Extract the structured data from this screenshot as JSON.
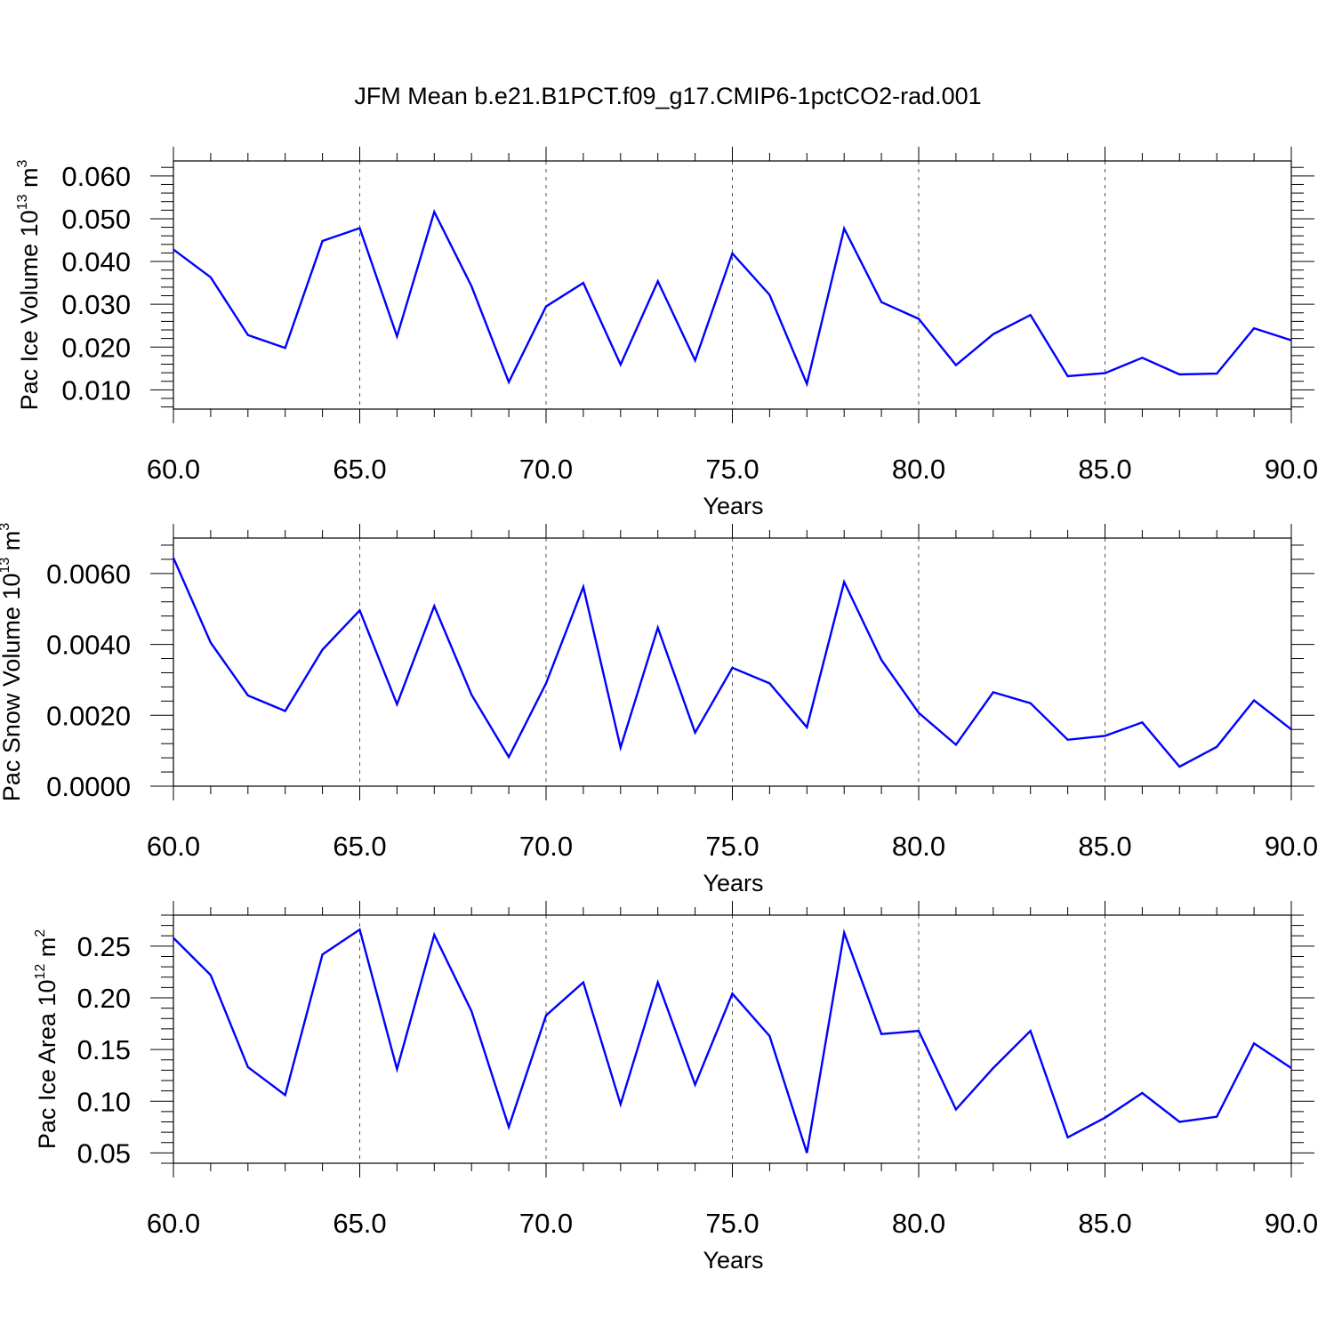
{
  "figure": {
    "title": "JFM Mean b.e21.B1PCT.f09_g17.CMIP6-1pctCO2-rad.001"
  },
  "chart_data": [
    {
      "type": "line",
      "xlabel": "Years",
      "ylabel": {
        "prefix": "Pac Ice Volume 10",
        "sup1": "13",
        "mid": " m",
        "sup2": "3"
      },
      "xlim": [
        60,
        90
      ],
      "ylim": [
        0.0055,
        0.0635
      ],
      "x_ticks": [
        60,
        65,
        70,
        75,
        80,
        85,
        90
      ],
      "x_tick_labels": [
        "60.0",
        "65.0",
        "70.0",
        "75.0",
        "80.0",
        "85.0",
        "90.0"
      ],
      "y_ticks": [
        0.01,
        0.02,
        0.03,
        0.04,
        0.05,
        0.06
      ],
      "y_tick_labels": [
        "0.010",
        "0.020",
        "0.030",
        "0.040",
        "0.050",
        "0.060"
      ],
      "grid": "dashed vertical at major x ticks",
      "series_color": "#0000ff",
      "x": [
        60,
        61,
        62,
        63,
        64,
        65,
        66,
        67,
        68,
        69,
        70,
        71,
        72,
        73,
        74,
        75,
        76,
        77,
        78,
        79,
        80,
        81,
        82,
        83,
        84,
        85,
        86,
        87,
        88,
        89,
        90
      ],
      "values": [
        0.0428,
        0.0363,
        0.0228,
        0.0198,
        0.0448,
        0.0478,
        0.0225,
        0.0516,
        0.0342,
        0.0118,
        0.0295,
        0.035,
        0.0159,
        0.0354,
        0.0169,
        0.0419,
        0.0322,
        0.0114,
        0.0477,
        0.0305,
        0.0266,
        0.0158,
        0.023,
        0.0275,
        0.0132,
        0.0139,
        0.0175,
        0.0136,
        0.0138,
        0.0244,
        0.0216
      ]
    },
    {
      "type": "line",
      "xlabel": "Years",
      "ylabel": {
        "prefix": "Pac Snow Volume 10",
        "sup1": "13",
        "mid": " m",
        "sup2": "3"
      },
      "xlim": [
        60,
        90
      ],
      "ylim": [
        0.0,
        0.007
      ],
      "x_ticks": [
        60,
        65,
        70,
        75,
        80,
        85,
        90
      ],
      "x_tick_labels": [
        "60.0",
        "65.0",
        "70.0",
        "75.0",
        "80.0",
        "85.0",
        "90.0"
      ],
      "y_ticks": [
        0.0,
        0.002,
        0.004,
        0.006
      ],
      "y_tick_labels": [
        "0.0000",
        "0.0020",
        "0.0040",
        "0.0060"
      ],
      "grid": "dashed vertical at major x ticks",
      "series_color": "#0000ff",
      "x": [
        60,
        61,
        62,
        63,
        64,
        65,
        66,
        67,
        68,
        69,
        70,
        71,
        72,
        73,
        74,
        75,
        76,
        77,
        78,
        79,
        80,
        81,
        82,
        83,
        84,
        85,
        86,
        87,
        88,
        89,
        90
      ],
      "values": [
        0.00644,
        0.00405,
        0.00256,
        0.00212,
        0.00385,
        0.00496,
        0.00231,
        0.00508,
        0.00258,
        0.00082,
        0.0029,
        0.00562,
        0.00109,
        0.00447,
        0.00151,
        0.00334,
        0.0029,
        0.00166,
        0.00576,
        0.00356,
        0.00207,
        0.00117,
        0.00265,
        0.00234,
        0.00131,
        0.00142,
        0.0018,
        0.00055,
        0.00111,
        0.00242,
        0.0016
      ]
    },
    {
      "type": "line",
      "xlabel": "Years",
      "ylabel": {
        "prefix": "Pac Ice Area 10",
        "sup1": "12",
        "mid": " m",
        "sup2": "2"
      },
      "xlim": [
        60,
        90
      ],
      "ylim": [
        0.04,
        0.28
      ],
      "x_ticks": [
        60,
        65,
        70,
        75,
        80,
        85,
        90
      ],
      "x_tick_labels": [
        "60.0",
        "65.0",
        "70.0",
        "75.0",
        "80.0",
        "85.0",
        "90.0"
      ],
      "y_ticks": [
        0.05,
        0.1,
        0.15,
        0.2,
        0.25
      ],
      "y_tick_labels": [
        "0.05",
        "0.10",
        "0.15",
        "0.20",
        "0.25"
      ],
      "grid": "dashed vertical at major x ticks",
      "series_color": "#0000ff",
      "x": [
        60,
        61,
        62,
        63,
        64,
        65,
        66,
        67,
        68,
        69,
        70,
        71,
        72,
        73,
        74,
        75,
        76,
        77,
        78,
        79,
        80,
        81,
        82,
        83,
        84,
        85,
        86,
        87,
        88,
        89,
        90
      ],
      "values": [
        0.258,
        0.222,
        0.133,
        0.106,
        0.242,
        0.266,
        0.131,
        0.261,
        0.187,
        0.075,
        0.183,
        0.215,
        0.097,
        0.215,
        0.116,
        0.204,
        0.163,
        0.05,
        0.263,
        0.165,
        0.168,
        0.092,
        0.132,
        0.168,
        0.065,
        0.084,
        0.108,
        0.08,
        0.085,
        0.156,
        0.132
      ]
    }
  ]
}
